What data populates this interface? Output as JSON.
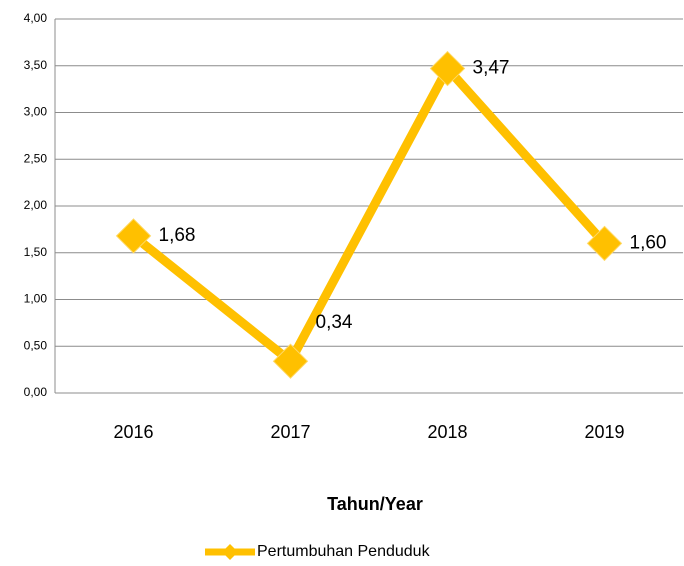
{
  "chart_data": {
    "type": "line",
    "x_label": "Tahun/Year",
    "categories": [
      "2016",
      "2017",
      "2018",
      "2019"
    ],
    "series": [
      {
        "name": "Pertumbuhan Penduduk",
        "color": "#FFC000",
        "values": [
          1.68,
          0.34,
          3.47,
          1.6
        ],
        "value_labels": [
          "1,68",
          "0,34",
          "3,47",
          "1,60"
        ]
      }
    ],
    "ylim": [
      0,
      4
    ],
    "yticks": [
      {
        "value": 0,
        "label": "0,00"
      },
      {
        "value": 0.5,
        "label": "0,50"
      },
      {
        "value": 1,
        "label": "1,00"
      },
      {
        "value": 1.5,
        "label": "1,50"
      },
      {
        "value": 2,
        "label": "2,00"
      },
      {
        "value": 2.5,
        "label": "2,50"
      },
      {
        "value": 3,
        "label": "3,00"
      },
      {
        "value": 3.5,
        "label": "3,50"
      },
      {
        "value": 4,
        "label": "4,00"
      }
    ],
    "grid": true,
    "legend": "bottom"
  }
}
